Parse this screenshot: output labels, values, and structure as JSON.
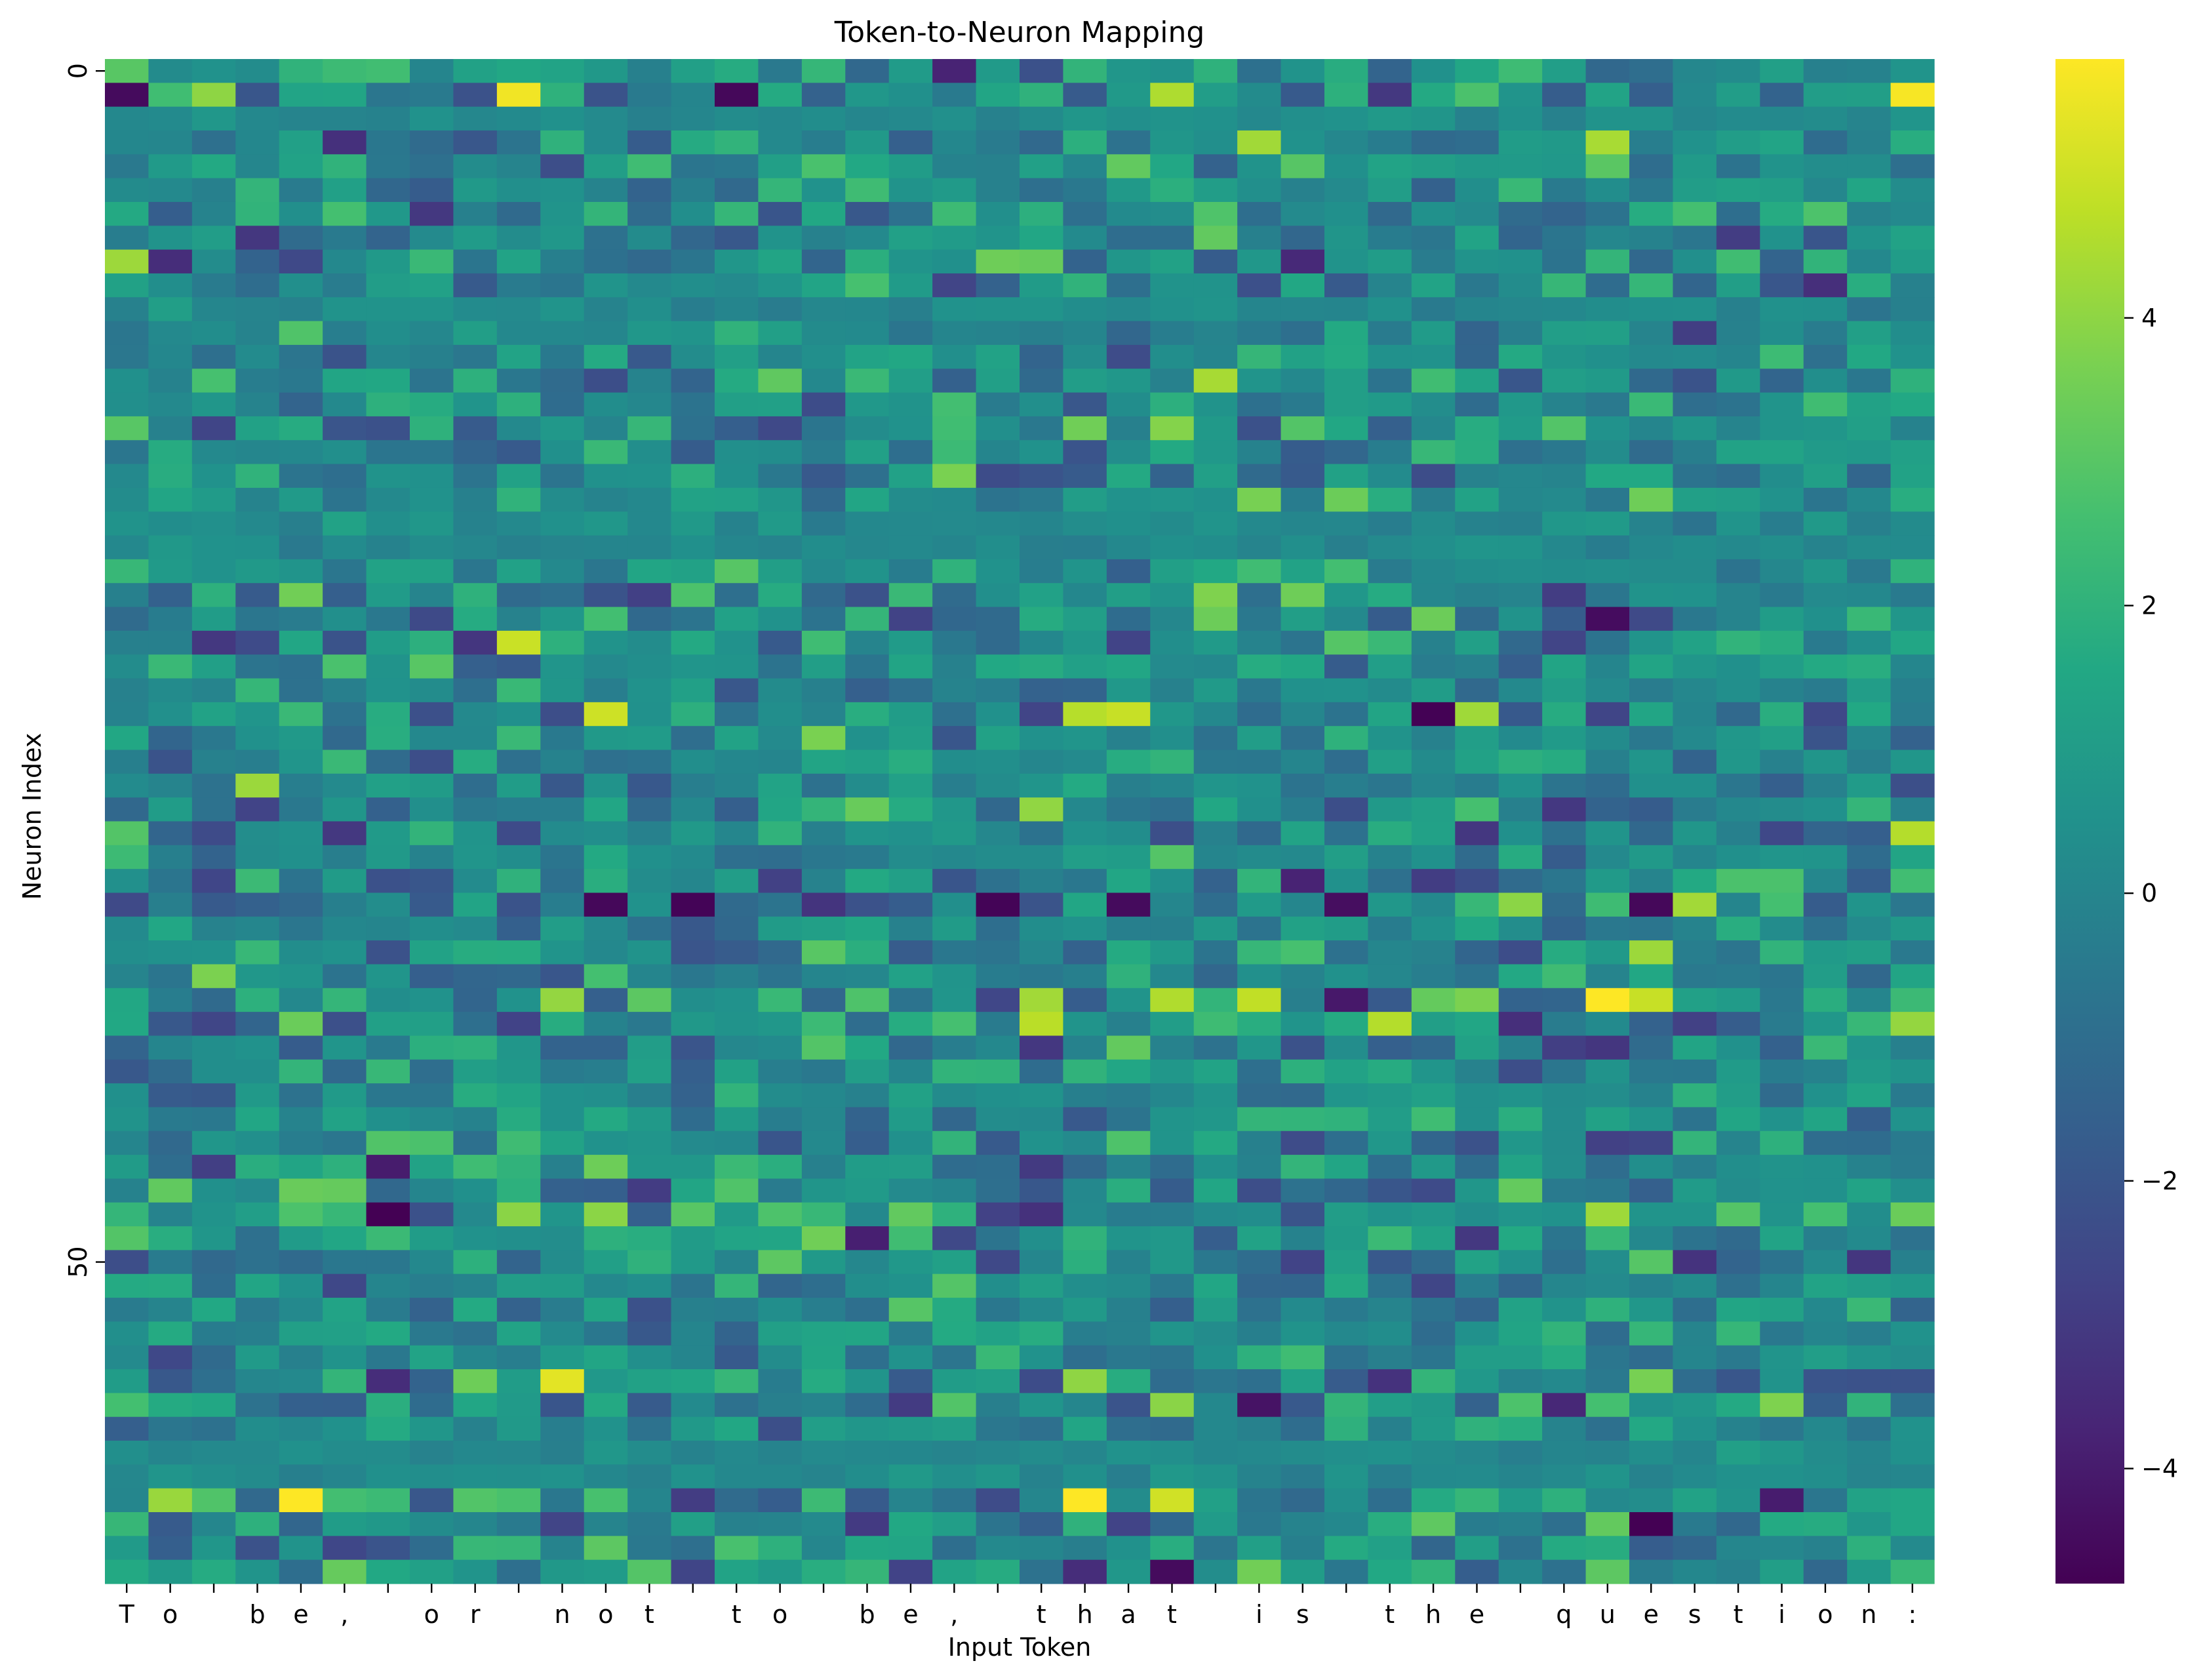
{
  "chart_data": {
    "type": "heatmap",
    "title": "Token-to-Neuron Mapping",
    "xlabel": "Input Token",
    "ylabel": "Neuron Index",
    "colormap": "viridis",
    "x_tokens": [
      "T",
      "o",
      " ",
      "b",
      "e",
      ",",
      " ",
      "o",
      "r",
      " ",
      "n",
      "o",
      "t",
      " ",
      "t",
      "o",
      " ",
      "b",
      "e",
      ",",
      " ",
      "t",
      "h",
      "a",
      "t",
      " ",
      "i",
      "s",
      " ",
      "t",
      "h",
      "e",
      " ",
      "q",
      "u",
      "e",
      "s",
      "t",
      "i",
      "o",
      "n",
      ":"
    ],
    "x_tick_labels": [
      "T",
      "o",
      " ",
      "b",
      "e",
      ",",
      " ",
      "o",
      "r",
      " ",
      "n",
      "o",
      "t",
      " ",
      "t",
      "o",
      " ",
      "b",
      "e",
      ",",
      " ",
      "t",
      "h",
      "a",
      "t",
      " ",
      "i",
      "s",
      " ",
      "t",
      "h",
      "e",
      " ",
      "q",
      "u",
      "e",
      "s",
      "t",
      "i",
      "o",
      "n",
      ":"
    ],
    "y_tick_labels": [
      "0",
      "50"
    ],
    "y_tick_rows": [
      0,
      50
    ],
    "n_neurons": 64,
    "colorbar": {
      "min": -4.8,
      "max": 5.8,
      "ticks": [
        -4,
        -2,
        0,
        2,
        4
      ],
      "tick_labels": [
        "−4",
        "−2",
        "0",
        "2",
        "4"
      ]
    },
    "values_generation": "pseudo-random activations; row 1 and row 28 contain strong extremes as seen in image",
    "highlights": [
      {
        "row": 1,
        "col": 9,
        "value": 5.6
      },
      {
        "row": 1,
        "col": 41,
        "value": 5.7
      },
      {
        "row": 1,
        "col": 0,
        "value": -4.5
      },
      {
        "row": 1,
        "col": 14,
        "value": -4.6
      },
      {
        "row": 3,
        "col": 26,
        "value": 4.3
      },
      {
        "row": 3,
        "col": 34,
        "value": 4.4
      },
      {
        "row": 27,
        "col": 11,
        "value": 5.0
      },
      {
        "row": 27,
        "col": 23,
        "value": 4.9
      },
      {
        "row": 30,
        "col": 3,
        "value": 4.2
      },
      {
        "row": 32,
        "col": 41,
        "value": 4.6
      },
      {
        "row": 35,
        "col": 11,
        "value": -4.6
      },
      {
        "row": 35,
        "col": 13,
        "value": -4.7
      },
      {
        "row": 35,
        "col": 20,
        "value": -4.7
      },
      {
        "row": 35,
        "col": 23,
        "value": -4.5
      },
      {
        "row": 35,
        "col": 28,
        "value": -4.4
      },
      {
        "row": 35,
        "col": 35,
        "value": -4.6
      },
      {
        "row": 39,
        "col": 26,
        "value": 4.8
      },
      {
        "row": 39,
        "col": 35,
        "value": 4.9
      },
      {
        "row": 40,
        "col": 21,
        "value": 4.7
      },
      {
        "row": 40,
        "col": 29,
        "value": 4.6
      },
      {
        "row": 63,
        "col": 24,
        "value": -4.5
      }
    ]
  }
}
